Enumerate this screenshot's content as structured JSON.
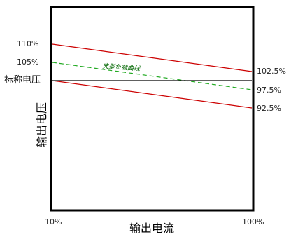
{
  "chart_data": {
    "type": "line",
    "xlabel": "输出电流",
    "ylabel": "输出电压",
    "x_ticks": [
      "10%",
      "100%"
    ],
    "x": [
      10,
      100
    ],
    "xlim": [
      10,
      100
    ],
    "y_ticks_left": [
      "110%",
      "105%",
      "标称电压"
    ],
    "y_ticks_right": [
      "102.5%",
      "97.5%",
      "92.5%"
    ],
    "series": [
      {
        "values": [
          110,
          102.5
        ],
        "color": "#cc0000",
        "dash": "solid"
      },
      {
        "values": [
          100,
          92.5
        ],
        "color": "#cc0000",
        "dash": "solid"
      },
      {
        "values": [
          105,
          97.5
        ],
        "color": "#22aa22",
        "dash": "dashed"
      },
      {
        "values": [
          100,
          100
        ],
        "color": "#000000",
        "dash": "solid"
      }
    ],
    "annotations": [
      "典型负载曲线"
    ],
    "grid": false,
    "legend": "none"
  }
}
